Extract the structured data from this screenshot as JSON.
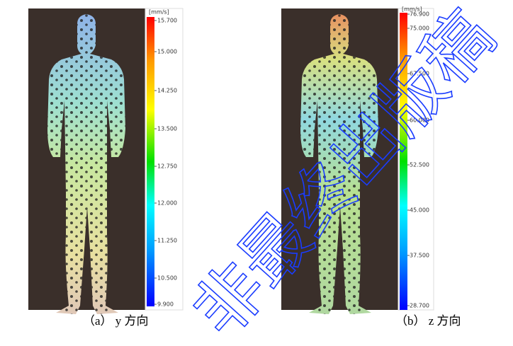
{
  "figures": [
    {
      "unit": "[mm/s]",
      "ticks": [
        "15.700",
        "15.000",
        "14.250",
        "13.500",
        "12.750",
        "12.000",
        "11.250",
        "10.500",
        "9.900"
      ],
      "caption": "（a） y 方向"
    },
    {
      "unit": "[mm/s]",
      "ticks": [
        "76.900",
        "75.000",
        "67.500",
        "60.000",
        "52.500",
        "45.000",
        "37.500",
        "28.700"
      ],
      "caption": "（b） z 方向"
    }
  ],
  "watermark": "非最终出版稿"
}
